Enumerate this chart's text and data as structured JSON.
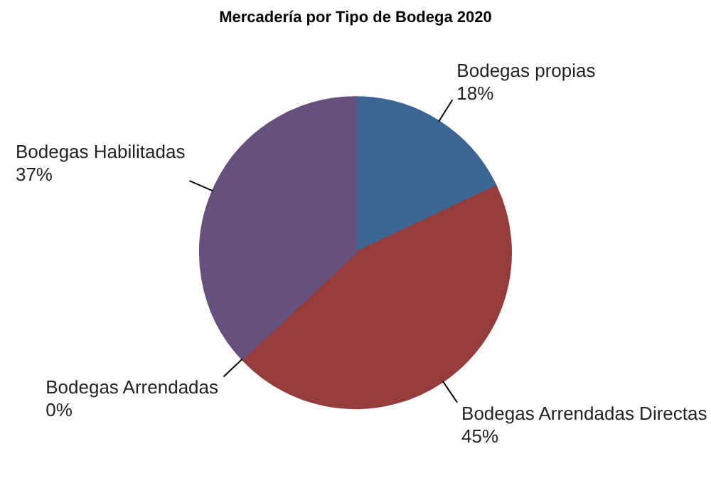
{
  "chart_data": {
    "type": "pie",
    "title": "Mercadería por Tipo de Bodega 2020",
    "categories": [
      "Bodegas propias",
      "Bodegas Arrendadas Directas",
      "Bodegas Arrendadas",
      "Bodegas Habilitadas"
    ],
    "values": [
      18,
      45,
      0,
      37
    ],
    "value_labels": [
      "18%",
      "45%",
      "0%",
      "37%"
    ],
    "colors": [
      "#3d6593",
      "#953d3c",
      "#a88b3c",
      "#65507e"
    ]
  }
}
